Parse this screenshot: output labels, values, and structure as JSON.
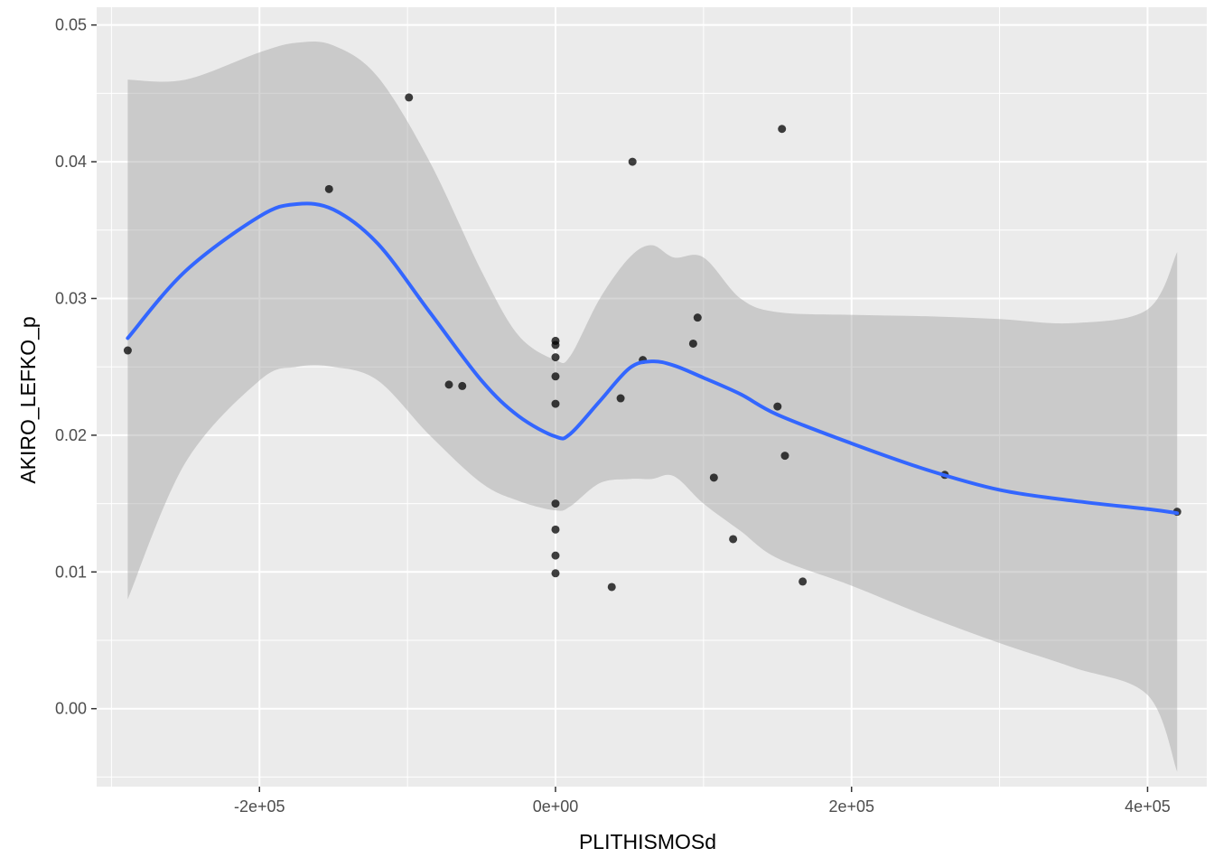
{
  "chart_data": {
    "type": "scatter",
    "title": "",
    "xlabel": "PLITHISMOSd",
    "ylabel": "AKIRO_LEFKO_p",
    "xlim": [
      -310000,
      440000
    ],
    "ylim": [
      -0.0057,
      0.0513
    ],
    "x_ticks": [
      {
        "value": -200000,
        "label": "-2e+05"
      },
      {
        "value": 0,
        "label": "0e+00"
      },
      {
        "value": 200000,
        "label": "2e+05"
      },
      {
        "value": 400000,
        "label": "4e+05"
      }
    ],
    "y_ticks": [
      {
        "value": 0.0,
        "label": "0.00"
      },
      {
        "value": 0.01,
        "label": "0.01"
      },
      {
        "value": 0.02,
        "label": "0.02"
      },
      {
        "value": 0.03,
        "label": "0.03"
      },
      {
        "value": 0.04,
        "label": "0.04"
      },
      {
        "value": 0.05,
        "label": "0.05"
      }
    ],
    "grid": true,
    "colors": {
      "panel": "#ebebeb",
      "grid": "#ffffff",
      "points": "#000000",
      "smooth_line": "#3366ff",
      "ribbon": "#999999"
    },
    "points": [
      {
        "x": -289000,
        "y": 0.0262
      },
      {
        "x": -153000,
        "y": 0.038
      },
      {
        "x": -99000,
        "y": 0.0447
      },
      {
        "x": -72000,
        "y": 0.0237
      },
      {
        "x": -63000,
        "y": 0.0236
      },
      {
        "x": 0,
        "y": 0.0269
      },
      {
        "x": 0,
        "y": 0.0266
      },
      {
        "x": 0,
        "y": 0.0257
      },
      {
        "x": 0,
        "y": 0.0243
      },
      {
        "x": 0,
        "y": 0.0223
      },
      {
        "x": 0,
        "y": 0.015
      },
      {
        "x": 0,
        "y": 0.0131
      },
      {
        "x": 0,
        "y": 0.0112
      },
      {
        "x": 0,
        "y": 0.0099
      },
      {
        "x": 38000,
        "y": 0.0089
      },
      {
        "x": 44000,
        "y": 0.0227
      },
      {
        "x": 52000,
        "y": 0.04
      },
      {
        "x": 59000,
        "y": 0.0255
      },
      {
        "x": 93000,
        "y": 0.0267
      },
      {
        "x": 96000,
        "y": 0.0286
      },
      {
        "x": 107000,
        "y": 0.0169
      },
      {
        "x": 120000,
        "y": 0.0124
      },
      {
        "x": 150000,
        "y": 0.0221
      },
      {
        "x": 153000,
        "y": 0.0424
      },
      {
        "x": 155000,
        "y": 0.0185
      },
      {
        "x": 167000,
        "y": 0.0093
      },
      {
        "x": 263000,
        "y": 0.0171
      },
      {
        "x": 420000,
        "y": 0.0144
      }
    ],
    "smooth": {
      "x": [
        -289000,
        -250000,
        -200000,
        -175000,
        -150000,
        -120000,
        -85000,
        -50000,
        -25000,
        0,
        10000,
        30000,
        50000,
        65000,
        80000,
        100000,
        125000,
        150000,
        200000,
        250000,
        300000,
        350000,
        400000,
        420000
      ],
      "y": [
        0.0271,
        0.032,
        0.036,
        0.0369,
        0.0365,
        0.034,
        0.029,
        0.024,
        0.0214,
        0.0199,
        0.0201,
        0.0225,
        0.0249,
        0.0254,
        0.0251,
        0.0242,
        0.023,
        0.0215,
        0.0194,
        0.0175,
        0.016,
        0.0152,
        0.0146,
        0.0143
      ],
      "upper": [
        0.046,
        0.046,
        0.048,
        0.0487,
        0.0485,
        0.0462,
        0.04,
        0.032,
        0.0273,
        0.0255,
        0.0258,
        0.03,
        0.033,
        0.0339,
        0.033,
        0.033,
        0.03,
        0.029,
        0.0288,
        0.0287,
        0.0285,
        0.0282,
        0.0292,
        0.0334
      ],
      "lower": [
        0.008,
        0.018,
        0.024,
        0.025,
        0.025,
        0.024,
        0.02,
        0.0165,
        0.0152,
        0.0145,
        0.0148,
        0.0165,
        0.0168,
        0.0168,
        0.017,
        0.015,
        0.013,
        0.011,
        0.009,
        0.0068,
        0.0048,
        0.003,
        0.001,
        -0.0046
      ]
    }
  }
}
